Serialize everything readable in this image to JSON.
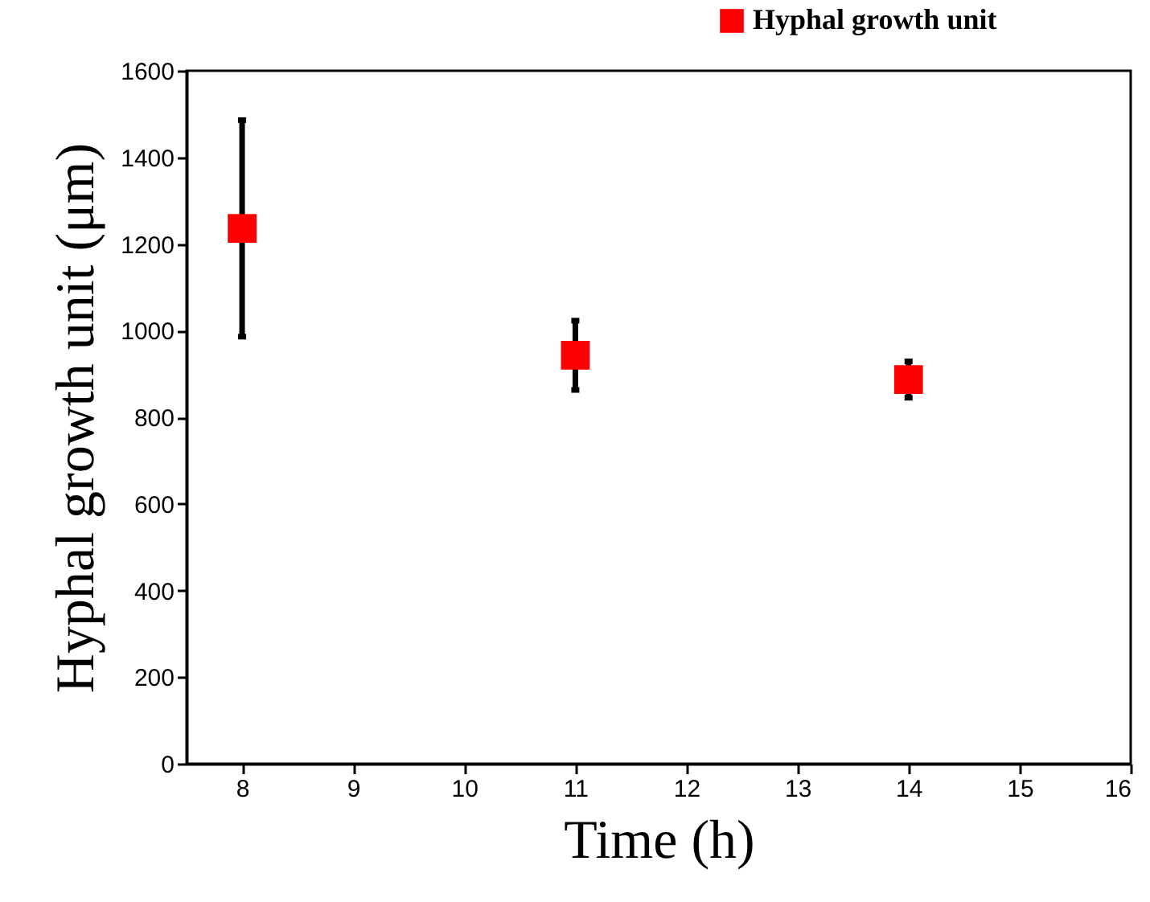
{
  "chart_data": {
    "type": "scatter",
    "xlabel": "Time (h)",
    "ylabel": "Hyphal growth unit (μm)",
    "x": [
      8,
      11,
      14
    ],
    "series": [
      {
        "name": "Hyphal growth unit",
        "color": "#ff0000",
        "values": [
          1236,
          943,
          887
        ],
        "errors": [
          250,
          80,
          42
        ]
      }
    ],
    "xlim": [
      7.5,
      16
    ],
    "xticks": [
      8,
      9,
      10,
      11,
      12,
      13,
      14,
      15,
      16
    ],
    "ylim": [
      0,
      1600
    ],
    "yticks": [
      0,
      200,
      400,
      600,
      800,
      1000,
      1200,
      1400,
      1600
    ],
    "marker": "square",
    "legend": "top right",
    "grid": false
  }
}
